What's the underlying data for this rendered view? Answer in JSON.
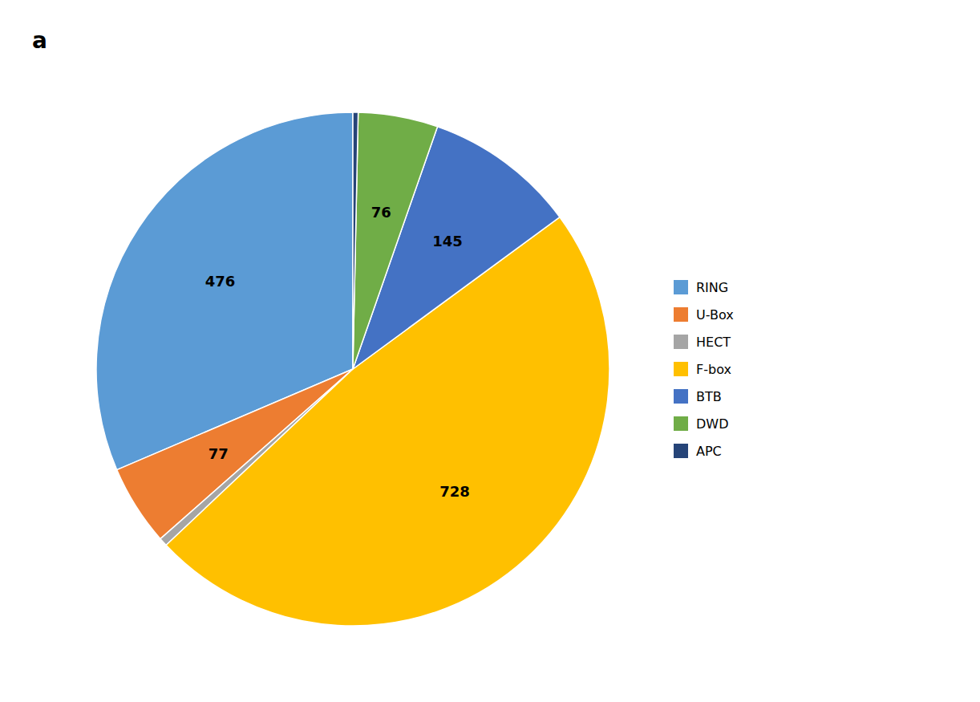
{
  "chart_data": {
    "type": "pie",
    "title": "a",
    "categories": [
      "RING",
      "U-Box",
      "HECT",
      "F-box",
      "BTB",
      "DWD",
      "APC"
    ],
    "values": [
      476,
      77,
      8,
      728,
      145,
      76,
      5
    ],
    "colors": [
      "#5B9BD5",
      "#ED7D31",
      "#A5A5A5",
      "#FFC000",
      "#4472C4",
      "#70AD47",
      "#264478"
    ],
    "data_labels": true,
    "value_labels": [
      "476",
      "77",
      null,
      "728",
      "145",
      "76",
      null
    ],
    "legend": "right"
  }
}
